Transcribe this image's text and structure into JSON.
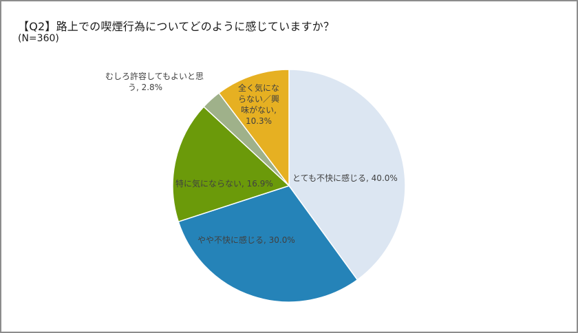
{
  "header": {
    "title": "【Q2】路上での喫煙行為についてどのように感じていますか？",
    "sample_size": "(N=360)"
  },
  "labels": {
    "very_uncomfortable": "とても不快に感じる, 40.0%",
    "somewhat_uncomfortable": "やや不快に感じる, 30.0%",
    "not_bothered": "特に気にならない, 16.9%",
    "acceptable_line1": "むしろ許容してもよいと思",
    "acceptable_line2": "う, 2.8%",
    "no_interest_line1": "全く気にな",
    "no_interest_line2": "らない／興",
    "no_interest_line3": "味がない,",
    "no_interest_line4": "10.3%"
  },
  "chart_data": {
    "type": "pie",
    "title": "【Q2】路上での喫煙行為についてどのように感じていますか？",
    "subtitle": "(N=360)",
    "categories": [
      "とても不快に感じる",
      "やや不快に感じる",
      "特に気にならない",
      "むしろ許容してもよいと思う",
      "全く気にならない／興味がない"
    ],
    "values": [
      40.0,
      30.0,
      16.9,
      2.8,
      10.3
    ],
    "unit": "%",
    "colors": [
      "#dce6f2",
      "#2583b8",
      "#6b9a0a",
      "#9fb18a",
      "#e6b022"
    ],
    "start_angle": "12 o'clock, clockwise",
    "legend": "none (data labels on slices)"
  }
}
